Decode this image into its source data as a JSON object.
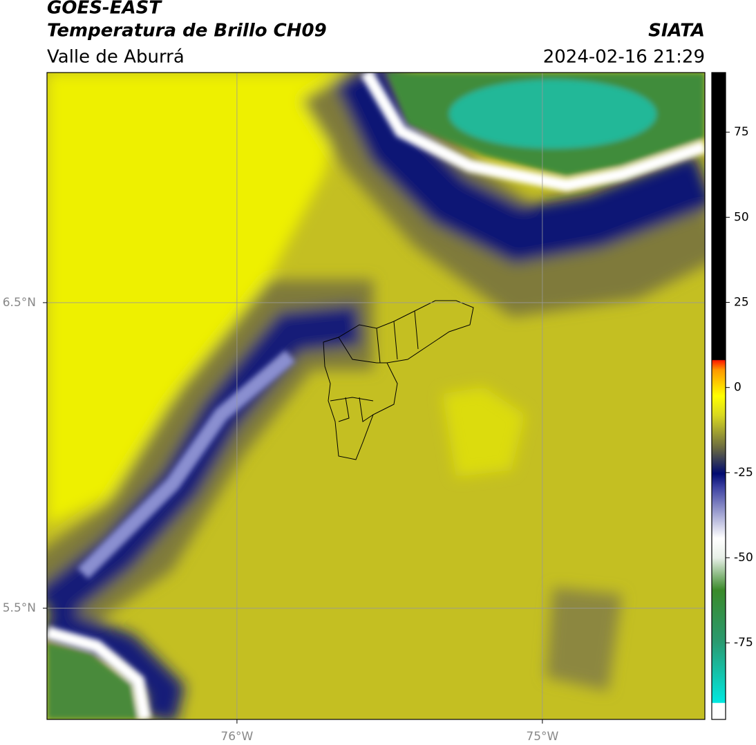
{
  "header": {
    "title": "GOES-EAST",
    "subtitle": "Temperatura de Brillo CH09",
    "region": "Valle de Aburrá",
    "source": "SIATA",
    "datetime": "2024-02-16 21:29"
  },
  "map": {
    "xlim": [
      -76.622,
      -74.468
    ],
    "ylim": [
      5.136,
      7.253
    ],
    "xticks": [
      {
        "value": -76,
        "label": "76°W"
      },
      {
        "value": -75,
        "label": "75°W"
      }
    ],
    "yticks": [
      {
        "value": 6.5,
        "label": "6.5°N"
      },
      {
        "value": 5.5,
        "label": "5.5°N"
      }
    ],
    "grid": true
  },
  "colorbar": {
    "lim": [
      -97.5,
      92.5
    ],
    "ticks": [
      -75,
      -50,
      -25,
      0,
      25,
      50,
      75
    ]
  }
}
